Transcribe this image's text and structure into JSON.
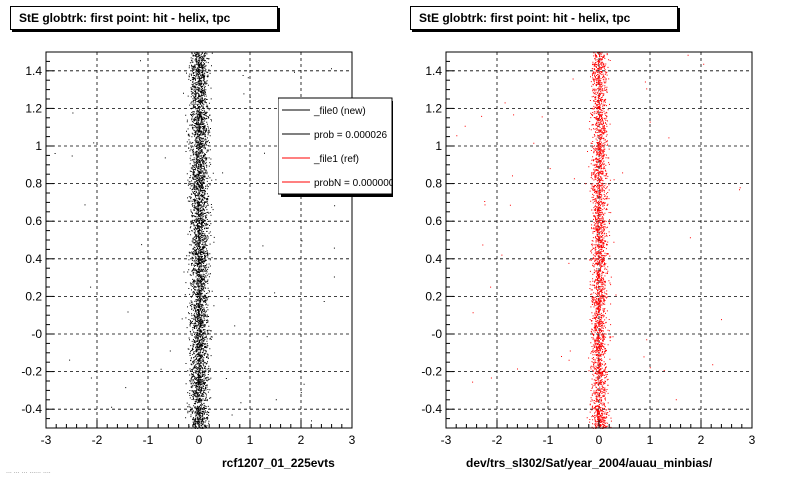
{
  "panels": [
    {
      "title": "StE globtrk: first point: hit - helix, tpc",
      "xlabel": "rcf1207_01_225evts"
    },
    {
      "title": "StE globtrk: first point: hit - helix, tpc",
      "xlabel": "dev/trs_sl302/Sat/year_2004/auau_minbias/"
    }
  ],
  "legend": {
    "entries": [
      {
        "label": "_file0 (new)",
        "color": "#000000"
      },
      {
        "label": "prob = 0.000026",
        "color": "#000000"
      },
      {
        "label": "_file1 (ref)",
        "color": "#ff0000"
      },
      {
        "label": "probN = 0.000000",
        "color": "#ff0000"
      }
    ]
  },
  "footer_note": "... ... ... ...... ....",
  "chart_data": [
    {
      "type": "scatter",
      "title": "StE globtrk: first point: hit - helix, tpc",
      "xlabel": "rcf1207_01_225evts",
      "ylabel": "",
      "xlim": [
        -3,
        3
      ],
      "ylim": [
        -0.5,
        1.5
      ],
      "x_ticks": [
        "-3",
        "-2",
        "-1",
        "0",
        "1",
        "2",
        "3"
      ],
      "y_ticks": [
        "-0.4",
        "-0.2",
        "-0",
        "0.2",
        "0.4",
        "0.6",
        "0.8",
        "1",
        "1.2",
        "1.4"
      ],
      "y_tick_values": [
        -0.4,
        -0.2,
        0,
        0.2,
        0.4,
        0.6,
        0.8,
        1.0,
        1.2,
        1.4
      ],
      "grid": true,
      "legend": "top-right",
      "series": [
        {
          "name": "_file0 (new)",
          "color": "#000000",
          "distribution": {
            "x_center": 0.0,
            "x_sigma": 0.09,
            "y_range": [
              -0.5,
              1.5
            ],
            "outlier_fraction": 0.01,
            "n_points": 5200
          }
        }
      ]
    },
    {
      "type": "scatter",
      "title": "StE globtrk: first point: hit - helix, tpc",
      "xlabel": "dev/trs_sl302/Sat/year_2004/auau_minbias/",
      "ylabel": "",
      "xlim": [
        -3,
        3
      ],
      "ylim": [
        -0.5,
        1.5
      ],
      "x_ticks": [
        "-3",
        "-2",
        "-1",
        "0",
        "1",
        "2",
        "3"
      ],
      "y_ticks": [
        "-0.4",
        "-0.2",
        "-0",
        "0.2",
        "0.4",
        "0.6",
        "0.8",
        "1",
        "1.2",
        "1.4"
      ],
      "y_tick_values": [
        -0.4,
        -0.2,
        0,
        0.2,
        0.4,
        0.6,
        0.8,
        1.0,
        1.2,
        1.4
      ],
      "grid": true,
      "series": [
        {
          "name": "_file1 (ref)",
          "color": "#ff0000",
          "distribution": {
            "x_center": 0.0,
            "x_sigma": 0.08,
            "y_range": [
              -0.5,
              1.5
            ],
            "outlier_fraction": 0.015,
            "n_points": 4200
          }
        }
      ]
    }
  ]
}
